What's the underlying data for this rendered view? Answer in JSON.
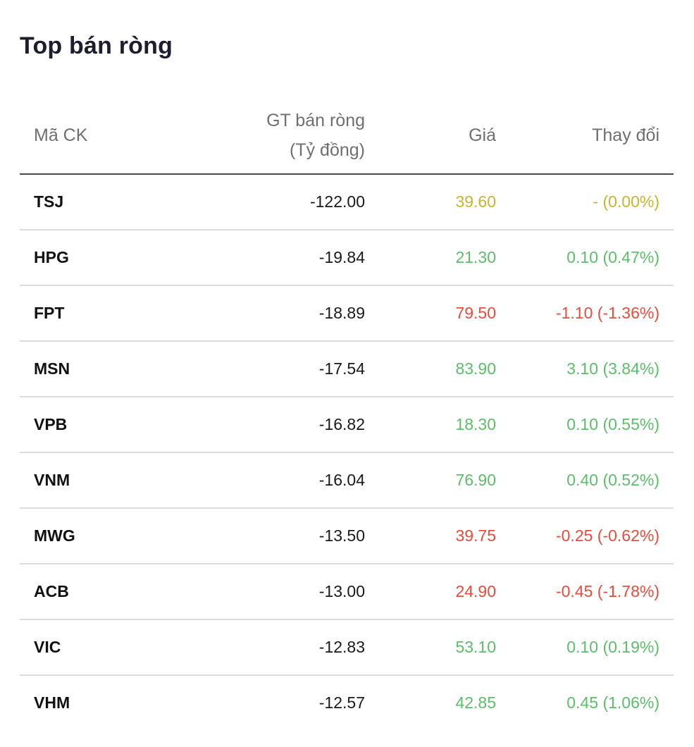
{
  "title": "Top bán ròng",
  "colors": {
    "up": "#5cbd6a",
    "down": "#e74c3c",
    "flat": "#c9b52c"
  },
  "table": {
    "headers": {
      "symbol": "Mã CK",
      "net_line1": "GT bán ròng",
      "net_line2": "(Tỷ đồng)",
      "price": "Giá",
      "change": "Thay đổi"
    },
    "rows": [
      {
        "symbol": "TSJ",
        "net": "-122.00",
        "price": "39.60",
        "change": "- (0.00%)",
        "trend": "flat"
      },
      {
        "symbol": "HPG",
        "net": "-19.84",
        "price": "21.30",
        "change": "0.10 (0.47%)",
        "trend": "up"
      },
      {
        "symbol": "FPT",
        "net": "-18.89",
        "price": "79.50",
        "change": "-1.10 (-1.36%)",
        "trend": "down"
      },
      {
        "symbol": "MSN",
        "net": "-17.54",
        "price": "83.90",
        "change": "3.10 (3.84%)",
        "trend": "up"
      },
      {
        "symbol": "VPB",
        "net": "-16.82",
        "price": "18.30",
        "change": "0.10 (0.55%)",
        "trend": "up"
      },
      {
        "symbol": "VNM",
        "net": "-16.04",
        "price": "76.90",
        "change": "0.40 (0.52%)",
        "trend": "up"
      },
      {
        "symbol": "MWG",
        "net": "-13.50",
        "price": "39.75",
        "change": "-0.25 (-0.62%)",
        "trend": "down"
      },
      {
        "symbol": "ACB",
        "net": "-13.00",
        "price": "24.90",
        "change": "-0.45 (-1.78%)",
        "trend": "down"
      },
      {
        "symbol": "VIC",
        "net": "-12.83",
        "price": "53.10",
        "change": "0.10 (0.19%)",
        "trend": "up"
      },
      {
        "symbol": "VHM",
        "net": "-12.57",
        "price": "42.85",
        "change": "0.45 (1.06%)",
        "trend": "up"
      }
    ]
  }
}
